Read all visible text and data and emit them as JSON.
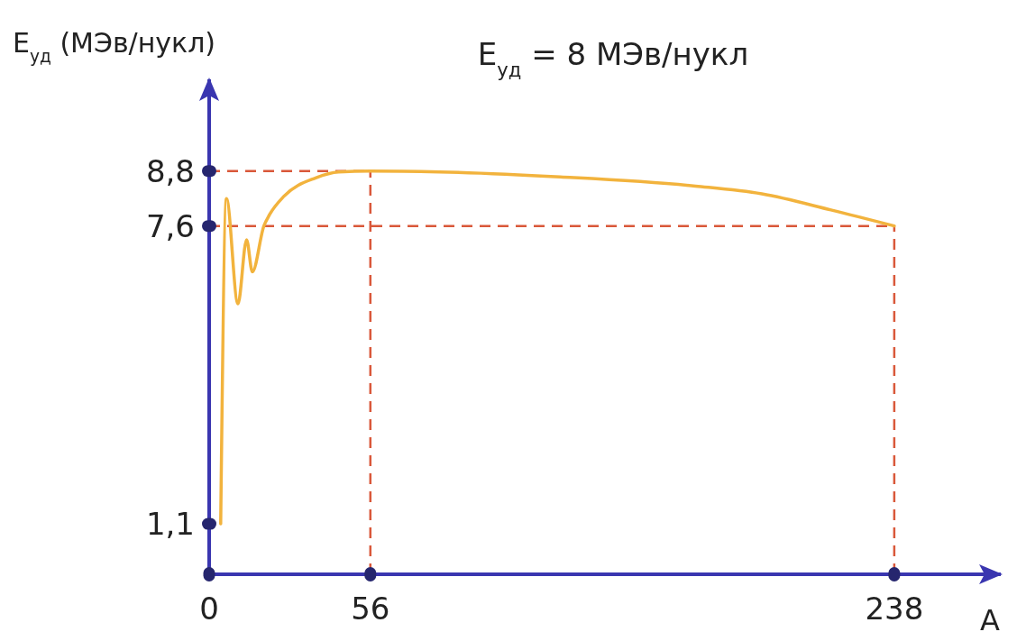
{
  "chart_data": {
    "type": "line",
    "title": "E$_{уд}$ = 8 МЭв/нукл",
    "xlabel": "A",
    "ylabel": "E$_{уд}$ (МЭв/нукл)",
    "x": [
      4,
      6,
      10,
      13,
      15,
      19,
      21,
      26,
      37,
      45,
      56,
      80,
      122,
      169,
      192,
      216,
      238
    ],
    "series": [
      {
        "color": "#f2b33d",
        "values": [
          1.1,
          8.2,
          5.9,
          7.3,
          6.6,
          7.6,
          7.85,
          8.25,
          8.65,
          8.78,
          8.8,
          8.78,
          8.67,
          8.47,
          8.3,
          7.95,
          7.6
        ]
      }
    ],
    "xlim": [
      0,
      275
    ],
    "ylim": [
      0,
      10.8
    ],
    "xticks": [
      0,
      56,
      238
    ],
    "yticks": [
      {
        "value": 1.1,
        "label": "1,1"
      },
      {
        "value": 7.6,
        "label": "7,6"
      },
      {
        "value": 8.8,
        "label": "8,8"
      }
    ],
    "ref_lines": [
      {
        "axis": "y",
        "value": 8.8,
        "color": "#d9583a",
        "line_style": "dashed"
      },
      {
        "axis": "y",
        "value": 7.6,
        "color": "#d9583a",
        "line_style": "dashed"
      },
      {
        "axis": "x",
        "value": 56,
        "color": "#d9583a",
        "line_style": "dashed"
      },
      {
        "axis": "x",
        "value": 238,
        "color": "#d9583a",
        "line_style": "dashed"
      }
    ]
  }
}
